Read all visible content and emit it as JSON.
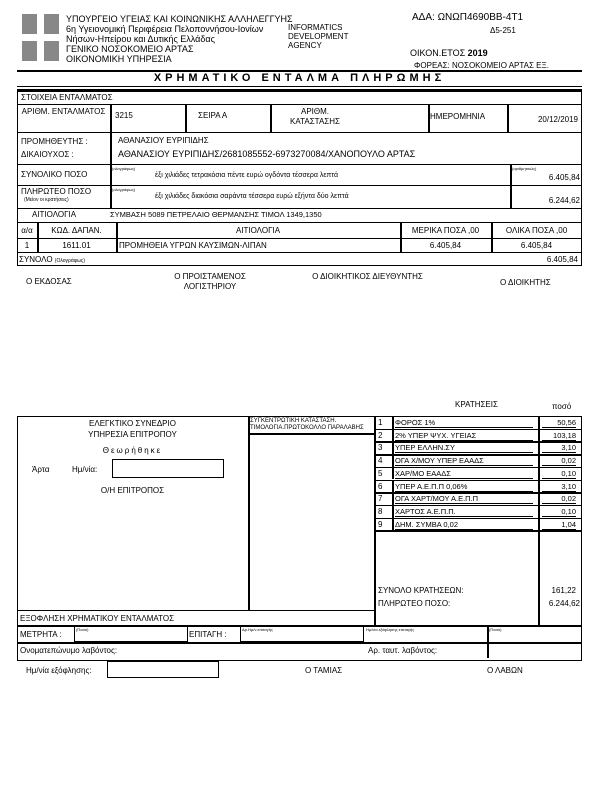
{
  "header": {
    "lines": [
      "ΥΠΟΥΡΓΕΙΟ ΥΓΕΙΑΣ ΚΑΙ ΚΟΙΝΩΝΙΚΗΣ ΑΛΛΗΛΕΓΓΥΗΣ",
      "6η Υγειονομική Περιφέρεια Πελοποννήσου-Ιονίων",
      "Νήσων-Ηπείρου και Δυτικής Ελλάδας",
      "ΓΕΝΙΚΟ ΝΟΣΟΚΟΜΕΙΟ ΑΡΤΑΣ",
      "ΟΙΚΟΝΟΜΙΚΗ ΥΠΗΡΕΣΙΑ"
    ],
    "logo": "INFORMATICS DEVELOPMENT AGENCY",
    "ada": "ΑΔΑ: ΩΝΩΠ4690ΒΒ-4Τ1",
    "code": "Δ5-251",
    "year_label": "ΟΙΚΟΝ.ΕΤΟΣ",
    "year": "2019",
    "foreas": "ΦΟΡΕΑΣ: ΝΟΣΟΚΟΜΕΙΟ ΑΡΤΑΣ ΕΞ."
  },
  "title": "ΧΡΗΜΑΤΙΚΟ ΕΝΤΑΛΜΑ ΠΛΗΡΩΜΗΣ",
  "entalma": {
    "section": "ΣΤΟΙΧΕΙΑ ΕΝΤΑΛΜΑΤΟΣ",
    "num_label": "ΑΡΙΘΜ. ΕΝΤΑΛΜΑΤΟΣ",
    "num": "3215",
    "seira": "ΣΕΙΡΑ Α",
    "kat_label": "ΑΡΙΘΜ. ΚΑΤΑΣΤΑΣΗΣ",
    "date_label": "ΗΜΕΡΟΜΗΝΙΑ",
    "date": "20/12/2019",
    "supplier_label": "ΠΡΟΜΗΘΕΥΤΗΣ :",
    "beneficiary_label": "ΔΙΚΑΙΟΥΧΟΣ :",
    "supplier": "ΑΘΑΝΑΣΙΟΥ ΕΥΡΙΠΙΔΗΣ",
    "beneficiary": "ΑΘΑΝΑΣΙΟΥ ΕΥΡΙΠΙΔΗΣ/2681085552-6973270084/ΧΑΝΟΠΟΥΛΟ ΑΡΤΑΣ",
    "total_label": "ΣΥΝΟΛΙΚΟ ΠΟΣΟ",
    "total_words": "έξι χιλιάδες τετρακόσια πέντε ευρώ ογδόντα τέσσερα λεπτά",
    "total": "6.405,84",
    "payable_label": "ΠΛΗΡΩΤΕΟ ΠΟΣΟ",
    "payable_sub": "(Μείον οι κρατήσεις)",
    "payable_words": "έξι χιλιάδες διακόσια σαράντα τέσσερα ευρώ εξήντα δύο λεπτά",
    "payable": "6.244,62",
    "words_note": "(ολογράφως)",
    "digits_note": "(αριθμητικώς)",
    "reason_label": "ΑΙΤΙΟΛΟΓΙΑ",
    "reason": "ΣΥΜΒΑΣΗ 5089 ΠΕΤΡΕΛΑΙΟ ΘΕΡΜΑΝΣΗΣ ΤΙΜΟΛ 1349,1350",
    "columns": [
      "α/α",
      "ΚΩΔ. ΔΑΠΑΝ.",
      "ΑΙΤΙΟΛΟΓΙΑ",
      "ΜΕΡΙΚΑ ΠΟΣΑ ,00",
      "ΟΛΙΚΑ ΠΟΣΑ ,00"
    ],
    "rows": [
      [
        "1",
        "1611.01",
        "ΠΡΟΜΗΘΕΙΑ ΥΓΡΩΝ ΚΑΥΣΙΜΩΝ-ΛΙΠΑΝ",
        "6.405,84",
        "6.405,84"
      ]
    ],
    "sum_label": "ΣΥΝΟΛΟ",
    "sum_note": "(Ολογράφως)",
    "sum": "6.405,84"
  },
  "signatures": [
    "Ο ΕΚΔΟΣΑΣ",
    "Ο ΠΡΟΙΣΤΑΜΕΝΟΣ ΛΟΓΙΣΤΗΡΙΟΥ",
    "Ο ΔΙΟΙΚΗΤΙΚΟΣ ΔΙΕΥΘΥΝΤΗΣ",
    "Ο ΔΙΟΙΚΗΤΗΣ"
  ],
  "audit": {
    "l1": "ΕΛΕΓΚΤΙΚΟ ΣΥΝΕΔΡΙΟ",
    "l2": "ΥΠΗΡΕΣΙΑ ΕΠΙΤΡΟΠΟΥ",
    "l3": "Θεωρήθηκε",
    "city": "Άρτα",
    "date_label": "Ημ/νία:",
    "signer": "Ο/Η ΕΠΙΤΡΟΠΟΣ"
  },
  "central": "ΣΥΓΚΕΝΤΡΩΤΙΚΗ ΚΑΤΑΣΤΑΣΗ. ΤΙΜΟΛΟΓΙΑ.ΠΡΩΤΟΚΟΛΛΟ ΠΑΡΑΛΑΒΗΣ",
  "kratiseis": {
    "title": "ΚΡΑΤΗΣΕΙΣ",
    "amount_label": "ποσό",
    "items": [
      [
        "1",
        "ΦΟΡΟΣ 1%",
        "50,56"
      ],
      [
        "2",
        "2% ΥΠΕΡ ΨΥΧ. ΥΓΕΙΑΣ",
        "103,18"
      ],
      [
        "3",
        "ΥΠΕΡ ΕΛΛΗΝ.ΣΥ",
        "3,10"
      ],
      [
        "4",
        "ΟΓΑ Χ/ΜΟΥ ΥΠΕΡ ΕΑΑΔΣ",
        "0,02"
      ],
      [
        "5",
        "ΧΑΡ/ΜΟ ΕΑΑΔΣ",
        "0,10"
      ],
      [
        "6",
        "ΥΠΕΡ Α.Ε.Π.Π 0,06%",
        "3,10"
      ],
      [
        "7",
        "ΟΓΑ ΧΑΡΤ/ΜΟΥ Α.Ε.Π.Π",
        "0,02"
      ],
      [
        "8",
        "ΧΑΡΤΟΣ Α.Ε.Π.Π.",
        "0,10"
      ],
      [
        "9",
        "ΔΗΜ. ΣΥΜΒΑ 0,02",
        "1,04"
      ]
    ],
    "total_label": "ΣΥΝΟΛΟ ΚΡΑΤΗΣΕΩΝ:",
    "total": "161,22",
    "payable_label": "ΠΛΗΡΩΤΕΟ ΠΟΣΟ:",
    "payable": "6.244,62"
  },
  "settlement": {
    "title": "ΕΞΟΦΛΗΣΗ ΧΡΗΜΑΤΙΚΟΥ ΕΝΤΑΛΜΑΤΟΣ",
    "cash": "ΜΕΤΡΗΤΑ :",
    "post": "(Ποσό)",
    "cheque": "ΕΠΙΤΑΓΗ :",
    "cheque_num": "Αρ.Ημ/ν.επιταγής",
    "cheque_date": "Ημ/νία εξόφλησης επιταγής",
    "post2": "(Ποσό)",
    "receiver_name": "Ονοματεπώνυμο λαβόντος:",
    "receiver_id": "Αρ. ταυτ. λαβόντος:",
    "pay_date": "Ημ/νία εξόφλησης:",
    "cashier": "Ο ΤΑΜΙΑΣ",
    "receiver": "Ο ΛΑΒΩΝ"
  }
}
